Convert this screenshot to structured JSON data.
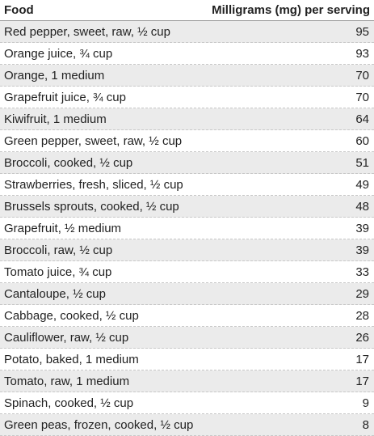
{
  "table": {
    "headers": {
      "food": "Food",
      "amount": "Milligrams (mg) per serving"
    },
    "rows": [
      {
        "food": "Red pepper, sweet, raw, ½ cup",
        "mg": "95"
      },
      {
        "food": "Orange juice, ¾ cup",
        "mg": "93"
      },
      {
        "food": "Orange, 1 medium",
        "mg": "70"
      },
      {
        "food": "Grapefruit juice, ¾ cup",
        "mg": "70"
      },
      {
        "food": "Kiwifruit, 1 medium",
        "mg": "64"
      },
      {
        "food": "Green pepper, sweet, raw, ½ cup",
        "mg": "60"
      },
      {
        "food": "Broccoli, cooked, ½ cup",
        "mg": "51"
      },
      {
        "food": "Strawberries, fresh, sliced, ½ cup",
        "mg": "49"
      },
      {
        "food": "Brussels sprouts, cooked, ½ cup",
        "mg": "48"
      },
      {
        "food": "Grapefruit, ½ medium",
        "mg": "39"
      },
      {
        "food": "Broccoli, raw, ½ cup",
        "mg": "39"
      },
      {
        "food": "Tomato juice, ¾ cup",
        "mg": "33"
      },
      {
        "food": "Cantaloupe, ½ cup",
        "mg": "29"
      },
      {
        "food": "Cabbage, cooked, ½ cup",
        "mg": "28"
      },
      {
        "food": "Cauliflower, raw, ½ cup",
        "mg": "26"
      },
      {
        "food": "Potato, baked, 1 medium",
        "mg": "17"
      },
      {
        "food": "Tomato, raw, 1 medium",
        "mg": "17"
      },
      {
        "food": "Spinach, cooked, ½ cup",
        "mg": "9"
      },
      {
        "food": "Green peas, frozen, cooked, ½ cup",
        "mg": "8"
      }
    ]
  }
}
